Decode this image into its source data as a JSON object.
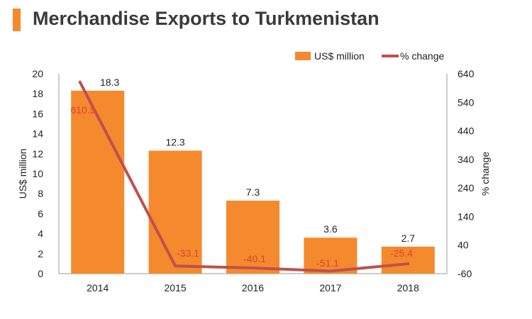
{
  "header": {
    "title": "Merchandise Exports to Turkmenistan",
    "accent_color": "#F5892E"
  },
  "chart_data": {
    "type": "bar",
    "title": "Merchandise Exports to Turkmenistan",
    "categories": [
      "2014",
      "2015",
      "2016",
      "2017",
      "2018"
    ],
    "series": [
      {
        "name": "US$ million",
        "type": "bar",
        "axis": "left",
        "values": [
          18.3,
          12.3,
          7.3,
          3.6,
          2.7
        ],
        "labels": [
          "18.3",
          "12.3",
          "7.3",
          "3.6",
          "2.7"
        ],
        "color": "#F5892E"
      },
      {
        "name": "% change",
        "type": "line",
        "axis": "right",
        "values": [
          610.9,
          -33.1,
          -40.1,
          -51.1,
          -25.4
        ],
        "labels": [
          "610.9",
          "-33.1",
          "-40.1",
          "-51.1",
          "-25.4"
        ],
        "color": "#C0504D"
      }
    ],
    "ylabel": "US$ million",
    "ylim": [
      0,
      20
    ],
    "yticks": [
      "0",
      "2",
      "4",
      "6",
      "8",
      "10",
      "12",
      "14",
      "16",
      "18",
      "20"
    ],
    "y2label": "% change",
    "y2lim": [
      -60,
      640
    ],
    "y2ticks": [
      "-60",
      "40",
      "140",
      "240",
      "340",
      "440",
      "540",
      "640"
    ],
    "legend": {
      "position": "top-right",
      "items": [
        "US$ million",
        "% change"
      ]
    },
    "grid": false,
    "line_label_color": "#E0432B"
  }
}
